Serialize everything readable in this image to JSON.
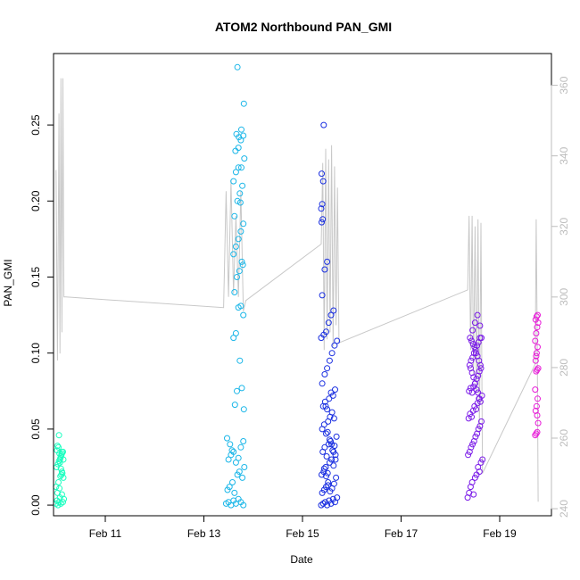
{
  "chart_data": {
    "type": "scatter",
    "title": "ATOM2 Northbound PAN_GMI",
    "xlabel": "Date",
    "ylabel": "PAN_GMI",
    "x_ticks": [
      {
        "day": 11,
        "label": "Feb 11"
      },
      {
        "day": 13,
        "label": "Feb 13"
      },
      {
        "day": 15,
        "label": "Feb 15"
      },
      {
        "day": 17,
        "label": "Feb 17"
      },
      {
        "day": 19,
        "label": "Feb 19"
      }
    ],
    "x_range": [
      9.95,
      20.05
    ],
    "x_range_note": "x values are day of February",
    "y_left": {
      "range": [
        -0.007,
        0.297
      ],
      "ticks": [
        "0.00",
        "0.05",
        "0.10",
        "0.15",
        "0.20",
        "0.25"
      ]
    },
    "y_right": {
      "range": [
        238,
        369
      ],
      "ticks": [
        "240",
        "260",
        "280",
        "300",
        "320",
        "340",
        "360"
      ],
      "color": "#bdbdbd"
    },
    "point_style": "open-circle",
    "series": [
      {
        "color": "#1affc0",
        "x": [
          10.0,
          10.02,
          10.04,
          10.06,
          10.08,
          10.1,
          10.12,
          10.14,
          10.16,
          10.0,
          10.03,
          10.05,
          10.07,
          10.09,
          10.11,
          10.13,
          10.15,
          10.01,
          10.04,
          10.06,
          10.08,
          10.1,
          10.12,
          10.14,
          10.02,
          10.05,
          10.07,
          10.09,
          10.11,
          10.13,
          10.15,
          10.03,
          10.06,
          10.08,
          10.1,
          10.12
        ],
        "y": [
          0.001,
          0.003,
          0.0,
          0.002,
          0.005,
          0.001,
          0.007,
          0.002,
          0.004,
          0.012,
          0.008,
          0.015,
          0.011,
          0.019,
          0.02,
          0.021,
          0.018,
          0.025,
          0.027,
          0.029,
          0.03,
          0.032,
          0.034,
          0.035,
          0.036,
          0.038,
          0.034,
          0.031,
          0.033,
          0.035,
          0.03,
          0.039,
          0.046,
          0.028,
          0.024,
          0.022
        ]
      },
      {
        "color": "#1ab6e8",
        "x": [
          13.45,
          13.5,
          13.55,
          13.6,
          13.65,
          13.7,
          13.75,
          13.8,
          13.48,
          13.52,
          13.58,
          13.62,
          13.68,
          13.72,
          13.78,
          13.82,
          13.5,
          13.55,
          13.6,
          13.65,
          13.7,
          13.75,
          13.8,
          13.47,
          13.53,
          13.57,
          13.63,
          13.67,
          13.73,
          13.77,
          13.81,
          13.6,
          13.65,
          13.7,
          13.75,
          13.8,
          13.62,
          13.67,
          13.72,
          13.77,
          13.6,
          13.65,
          13.7,
          13.75,
          13.8,
          13.62,
          13.68,
          13.73,
          13.78,
          13.6,
          13.65,
          13.7,
          13.76,
          13.82,
          13.64,
          13.7,
          13.75,
          13.8,
          13.66,
          13.71,
          13.76,
          13.81,
          13.68,
          13.74,
          13.79
        ],
        "y": [
          0.001,
          0.002,
          0.0,
          0.003,
          0.001,
          0.004,
          0.002,
          0.0,
          0.01,
          0.012,
          0.015,
          0.008,
          0.02,
          0.022,
          0.018,
          0.025,
          0.03,
          0.033,
          0.035,
          0.028,
          0.031,
          0.038,
          0.042,
          0.044,
          0.04,
          0.036,
          0.066,
          0.075,
          0.095,
          0.077,
          0.063,
          0.11,
          0.113,
          0.13,
          0.131,
          0.125,
          0.14,
          0.15,
          0.154,
          0.16,
          0.165,
          0.17,
          0.175,
          0.18,
          0.185,
          0.19,
          0.2,
          0.205,
          0.21,
          0.213,
          0.219,
          0.222,
          0.222,
          0.228,
          0.233,
          0.235,
          0.24,
          0.243,
          0.244,
          0.242,
          0.247,
          0.264,
          0.288,
          0.199,
          0.158
        ]
      },
      {
        "color": "#1a2fe0",
        "x": [
          15.38,
          15.42,
          15.46,
          15.5,
          15.54,
          15.58,
          15.62,
          15.66,
          15.7,
          15.4,
          15.44,
          15.48,
          15.52,
          15.56,
          15.6,
          15.64,
          15.68,
          15.39,
          15.43,
          15.47,
          15.51,
          15.55,
          15.59,
          15.63,
          15.67,
          15.41,
          15.45,
          15.49,
          15.53,
          15.57,
          15.61,
          15.65,
          15.69,
          15.4,
          15.44,
          15.48,
          15.52,
          15.56,
          15.6,
          15.64,
          15.42,
          15.46,
          15.5,
          15.54,
          15.58,
          15.62,
          15.66,
          15.4,
          15.45,
          15.5,
          15.55,
          15.6,
          15.65,
          15.7,
          15.38,
          15.43,
          15.48,
          15.53,
          15.58,
          15.63,
          15.4,
          15.45,
          15.5,
          15.39,
          15.41,
          15.38,
          15.4,
          15.42,
          15.39,
          15.43,
          15.47,
          15.51,
          15.55,
          15.59,
          15.63,
          15.67,
          15.44,
          15.48,
          15.52
        ],
        "y": [
          0.0,
          0.001,
          0.002,
          0.0,
          0.003,
          0.001,
          0.004,
          0.002,
          0.005,
          0.008,
          0.01,
          0.012,
          0.015,
          0.009,
          0.011,
          0.014,
          0.018,
          0.02,
          0.022,
          0.025,
          0.021,
          0.028,
          0.03,
          0.026,
          0.033,
          0.035,
          0.038,
          0.032,
          0.04,
          0.042,
          0.036,
          0.039,
          0.045,
          0.05,
          0.053,
          0.047,
          0.055,
          0.058,
          0.061,
          0.057,
          0.065,
          0.068,
          0.063,
          0.07,
          0.074,
          0.072,
          0.076,
          0.08,
          0.086,
          0.09,
          0.095,
          0.1,
          0.105,
          0.108,
          0.11,
          0.112,
          0.114,
          0.12,
          0.125,
          0.128,
          0.138,
          0.155,
          0.16,
          0.186,
          0.188,
          0.195,
          0.198,
          0.213,
          0.218,
          0.25,
          0.065,
          0.048,
          0.043,
          0.04,
          0.035,
          0.03,
          0.024,
          0.019,
          0.013
        ]
      },
      {
        "color": "#7a1ae8",
        "x": [
          18.35,
          18.38,
          18.41,
          18.44,
          18.47,
          18.5,
          18.53,
          18.56,
          18.59,
          18.62,
          18.65,
          18.36,
          18.39,
          18.42,
          18.45,
          18.48,
          18.51,
          18.54,
          18.57,
          18.6,
          18.63,
          18.37,
          18.4,
          18.43,
          18.46,
          18.49,
          18.52,
          18.55,
          18.58,
          18.61,
          18.64,
          18.38,
          18.41,
          18.44,
          18.47,
          18.5,
          18.53,
          18.56,
          18.59,
          18.62,
          18.39,
          18.42,
          18.45,
          18.48,
          18.51,
          18.54,
          18.57,
          18.6,
          18.63,
          18.4,
          18.43,
          18.46,
          18.49,
          18.52,
          18.55,
          18.58,
          18.61,
          18.41,
          18.44,
          18.47,
          18.5,
          18.53,
          18.56,
          18.59,
          18.45,
          18.5,
          18.55,
          18.6
        ],
        "y": [
          0.005,
          0.008,
          0.012,
          0.015,
          0.007,
          0.018,
          0.02,
          0.025,
          0.022,
          0.028,
          0.03,
          0.033,
          0.035,
          0.038,
          0.04,
          0.042,
          0.045,
          0.047,
          0.05,
          0.052,
          0.055,
          0.057,
          0.06,
          0.058,
          0.062,
          0.065,
          0.063,
          0.067,
          0.07,
          0.068,
          0.072,
          0.075,
          0.077,
          0.074,
          0.078,
          0.08,
          0.083,
          0.085,
          0.088,
          0.09,
          0.092,
          0.095,
          0.097,
          0.1,
          0.102,
          0.105,
          0.107,
          0.11,
          0.11,
          0.11,
          0.108,
          0.106,
          0.104,
          0.1,
          0.098,
          0.095,
          0.092,
          0.09,
          0.087,
          0.084,
          0.08,
          0.076,
          0.074,
          0.07,
          0.115,
          0.12,
          0.125,
          0.118
        ]
      },
      {
        "color": "#e81ad8",
        "x": [
          19.72,
          19.74,
          19.76,
          19.78,
          19.73,
          19.75,
          19.77,
          19.72,
          19.74,
          19.76,
          19.78,
          19.73,
          19.75,
          19.77,
          19.72,
          19.74,
          19.76,
          19.78,
          19.73,
          19.75,
          19.77,
          19.74,
          19.76
        ],
        "y": [
          0.046,
          0.047,
          0.048,
          0.054,
          0.062,
          0.065,
          0.07,
          0.076,
          0.088,
          0.089,
          0.09,
          0.095,
          0.1,
          0.104,
          0.108,
          0.113,
          0.117,
          0.12,
          0.122,
          0.124,
          0.125,
          0.098,
          0.059
        ]
      }
    ],
    "line_series": {
      "axis": "right",
      "color": "#c8c8c8",
      "x": [
        10.0,
        10.03,
        10.06,
        10.08,
        10.1,
        10.12,
        10.14,
        10.16,
        10.18,
        10.2,
        13.4,
        13.45,
        13.5,
        13.55,
        13.6,
        13.65,
        13.7,
        13.75,
        13.8,
        13.85,
        15.38,
        15.41,
        15.44,
        15.47,
        15.5,
        15.53,
        15.56,
        15.59,
        15.62,
        15.65,
        15.68,
        15.71,
        15.74,
        18.35,
        18.38,
        18.41,
        18.44,
        18.47,
        18.5,
        18.53,
        18.56,
        18.59,
        18.62,
        18.65,
        19.72,
        19.74,
        19.76,
        19.78
      ],
      "y": [
        336,
        282,
        352,
        284,
        362,
        290,
        362,
        300,
        300,
        300,
        297,
        330,
        300,
        333,
        301,
        323,
        300,
        330,
        296,
        299,
        315,
        338,
        285,
        342,
        288,
        339,
        290,
        343,
        286,
        337,
        292,
        331,
        287,
        302,
        323,
        285,
        323,
        278,
        320,
        273,
        322,
        262,
        321,
        250,
        281,
        322,
        290,
        242
      ]
    }
  }
}
